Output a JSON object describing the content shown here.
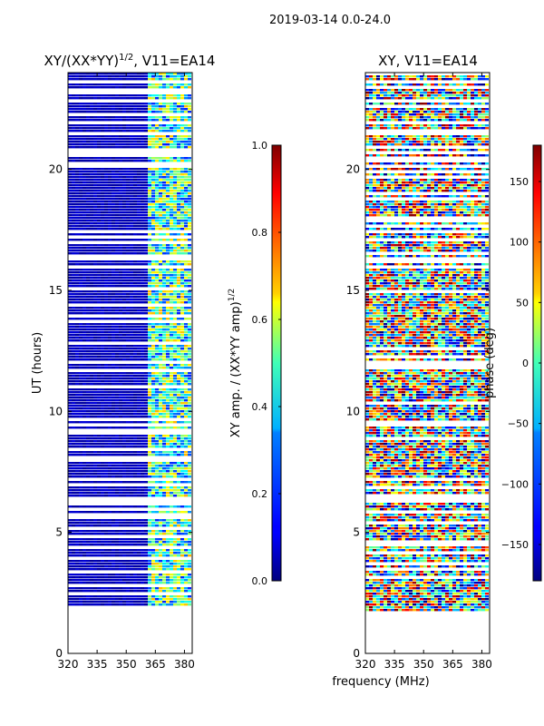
{
  "figure_title": "2019-03-14 0.0-24.0",
  "shared_xlabel": "frequency (MHz)",
  "chart_data": [
    {
      "type": "heatmap",
      "name": "amplitude-ratio",
      "title_base": "XY/(XX*YY)",
      "title_exp": "1/2",
      "title_suffix": ", V11=EA14",
      "ylabel": "UT (hours)",
      "xlim": [
        320,
        384
      ],
      "ylim": [
        0,
        24
      ],
      "x_ticks": [
        320,
        335,
        350,
        365,
        380
      ],
      "y_ticks": [
        0,
        5,
        10,
        15,
        20
      ],
      "data_range_hours": [
        1.75,
        24
      ],
      "colorbar": {
        "label_base": "XY amp. / (XX*YY amp)",
        "label_exp": "1/2",
        "range": [
          0.0,
          1.0
        ],
        "ticks": [
          "0.0",
          "0.2",
          "0.4",
          "0.6",
          "0.8",
          "1.0"
        ],
        "colormap": "jet"
      }
    },
    {
      "type": "heatmap",
      "name": "xy-phase",
      "title": "XY, V11=EA14",
      "ylabel": "",
      "xlim": [
        320,
        384
      ],
      "ylim": [
        0,
        24
      ],
      "x_ticks": [
        320,
        335,
        350,
        365,
        380
      ],
      "y_ticks": [
        0,
        5,
        10,
        15,
        20
      ],
      "data_range_hours": [
        1.75,
        24
      ],
      "colorbar": {
        "label": "phase (deg)",
        "range": [
          -180,
          180
        ],
        "ticks": [
          "-150",
          "-100",
          "-50",
          "0",
          "50",
          "100",
          "150"
        ],
        "colormap": "jet"
      }
    }
  ]
}
